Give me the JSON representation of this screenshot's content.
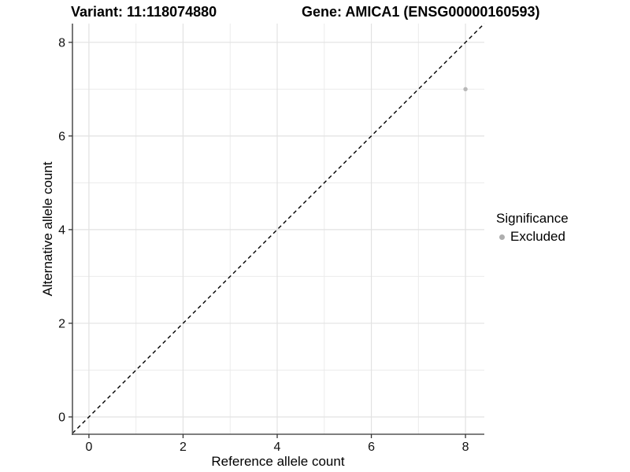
{
  "chart_data": {
    "type": "scatter",
    "titles": {
      "left": "Variant: 11:118074880",
      "right": "Gene: AMICA1 (ENSG00000160593)"
    },
    "xlabel": "Reference allele count",
    "ylabel": "Alternative allele count",
    "xlim": [
      -0.35,
      8.4
    ],
    "ylim": [
      -0.37,
      8.4
    ],
    "x_ticks": [
      0,
      2,
      4,
      6,
      8
    ],
    "y_ticks": [
      0,
      2,
      4,
      6,
      8
    ],
    "x_minor": [
      1,
      3,
      5,
      7
    ],
    "y_minor": [
      1,
      3,
      5,
      7
    ],
    "grid": true,
    "identity_line": {
      "slope": 1,
      "intercept": 0,
      "style": "dashed",
      "color": "#000000"
    },
    "series": [
      {
        "name": "Excluded",
        "color": "#b8b8b8",
        "points": [
          [
            8,
            7
          ]
        ]
      }
    ],
    "legend": {
      "position": "right",
      "title": "Significance",
      "entries": [
        {
          "label": "Excluded",
          "color": "#aeaeae"
        }
      ]
    },
    "colors": {
      "background": "#ffffff",
      "grid_major": "#e2e2e2",
      "grid_minor": "#ebebeb",
      "axis_line": "#555555",
      "tick_mark": "#333333",
      "tick_text": "#111111"
    }
  }
}
